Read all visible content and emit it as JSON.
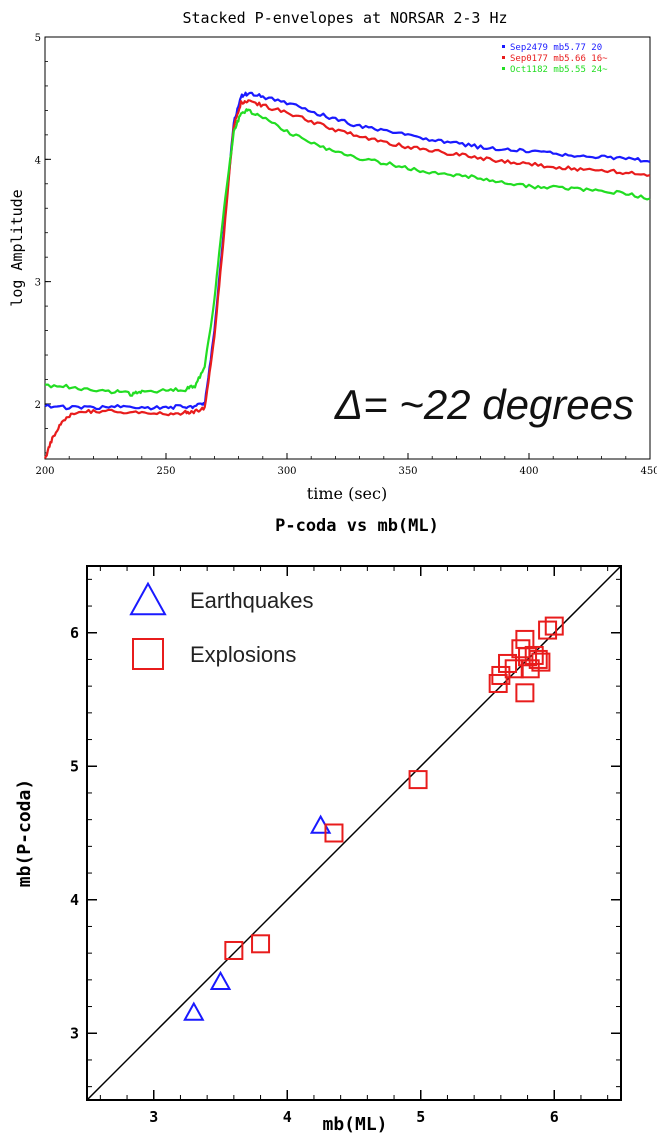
{
  "chart_data": [
    {
      "type": "line",
      "title": "Stacked P-envelopes at NORSAR 2-3 Hz",
      "xlabel": "time (sec)",
      "ylabel": "log Amplitude",
      "xlim": [
        200,
        450
      ],
      "ylim": [
        1.55,
        5
      ],
      "xticks": [
        200,
        250,
        300,
        350,
        400,
        450
      ],
      "yticks": [
        2,
        3,
        4,
        5
      ],
      "grid": false,
      "legend_position": "top-right",
      "annotation": "Δ= ~22 degrees",
      "colors": {
        "blue": "#1a1aff",
        "red": "#e81c1c",
        "green": "#22dd22"
      },
      "series": [
        {
          "name": "Sep2479  mb5.77  20",
          "color": "#1a1aff",
          "x": [
            200,
            210,
            220,
            230,
            240,
            250,
            258,
            262,
            266,
            270,
            274,
            278,
            281,
            284,
            290,
            300,
            310,
            320,
            330,
            340,
            350,
            360,
            370,
            380,
            390,
            400,
            410,
            420,
            430,
            440,
            450
          ],
          "y": [
            1.98,
            1.97,
            1.97,
            1.98,
            1.97,
            1.97,
            1.98,
            1.98,
            2.0,
            2.6,
            3.45,
            4.3,
            4.52,
            4.54,
            4.51,
            4.46,
            4.39,
            4.33,
            4.27,
            4.23,
            4.2,
            4.16,
            4.13,
            4.1,
            4.08,
            4.07,
            4.05,
            4.03,
            4.02,
            4.01,
            3.98
          ]
        },
        {
          "name": "Sep0177  mb5.66  16~",
          "color": "#e81c1c",
          "x": [
            200,
            203,
            207,
            212,
            220,
            230,
            240,
            250,
            258,
            262,
            266,
            270,
            274,
            278,
            281,
            284,
            290,
            300,
            310,
            320,
            330,
            340,
            350,
            360,
            370,
            380,
            390,
            400,
            410,
            420,
            430,
            440,
            450
          ],
          "y": [
            1.55,
            1.72,
            1.85,
            1.93,
            1.94,
            1.94,
            1.92,
            1.92,
            1.93,
            1.94,
            1.97,
            2.55,
            3.4,
            4.28,
            4.46,
            4.48,
            4.44,
            4.38,
            4.31,
            4.24,
            4.19,
            4.14,
            4.1,
            4.07,
            4.04,
            4.01,
            3.98,
            3.96,
            3.94,
            3.92,
            3.91,
            3.89,
            3.87
          ]
        },
        {
          "name": "Oct1182  mb5.55  24~",
          "color": "#22dd22",
          "x": [
            200,
            210,
            220,
            230,
            236,
            240,
            250,
            258,
            262,
            266,
            270,
            274,
            278,
            281,
            284,
            290,
            300,
            310,
            320,
            330,
            340,
            350,
            360,
            370,
            380,
            390,
            400,
            410,
            420,
            430,
            440,
            450
          ],
          "y": [
            2.15,
            2.14,
            2.11,
            2.1,
            2.08,
            2.1,
            2.11,
            2.12,
            2.15,
            2.3,
            2.85,
            3.6,
            4.22,
            4.38,
            4.4,
            4.34,
            4.23,
            4.13,
            4.06,
            4.01,
            3.97,
            3.93,
            3.89,
            3.87,
            3.85,
            3.8,
            3.78,
            3.77,
            3.76,
            3.74,
            3.72,
            3.68
          ]
        }
      ]
    },
    {
      "type": "scatter",
      "title": "P-coda vs mb(ML)",
      "xlabel": "mb(ML)",
      "ylabel": "mb(P-coda)",
      "xlim": [
        2.5,
        6.5
      ],
      "ylim": [
        2.5,
        6.5
      ],
      "xticks": [
        3,
        4,
        5,
        6
      ],
      "yticks": [
        3,
        4,
        5,
        6
      ],
      "grid": false,
      "legend_position": "top-left",
      "reference_line": {
        "x": [
          2.5,
          6.5
        ],
        "y": [
          2.5,
          6.5
        ]
      },
      "series": [
        {
          "name": "Earthquakes",
          "marker": "triangle",
          "color": "#1a1aff",
          "points": [
            [
              3.3,
              3.15
            ],
            [
              3.5,
              3.38
            ],
            [
              4.25,
              4.55
            ]
          ]
        },
        {
          "name": "Explosions",
          "marker": "square",
          "color": "#e81c1c",
          "points": [
            [
              3.6,
              3.62
            ],
            [
              3.8,
              3.67
            ],
            [
              4.35,
              4.5
            ],
            [
              4.98,
              4.9
            ],
            [
              5.58,
              5.62
            ],
            [
              5.6,
              5.68
            ],
            [
              5.65,
              5.77
            ],
            [
              5.7,
              5.73
            ],
            [
              5.75,
              5.88
            ],
            [
              5.78,
              5.95
            ],
            [
              5.8,
              5.82
            ],
            [
              5.82,
              5.73
            ],
            [
              5.85,
              5.83
            ],
            [
              5.88,
              5.8
            ],
            [
              5.9,
              5.78
            ],
            [
              5.78,
              5.55
            ],
            [
              5.95,
              6.02
            ],
            [
              6.0,
              6.05
            ]
          ]
        }
      ]
    }
  ]
}
